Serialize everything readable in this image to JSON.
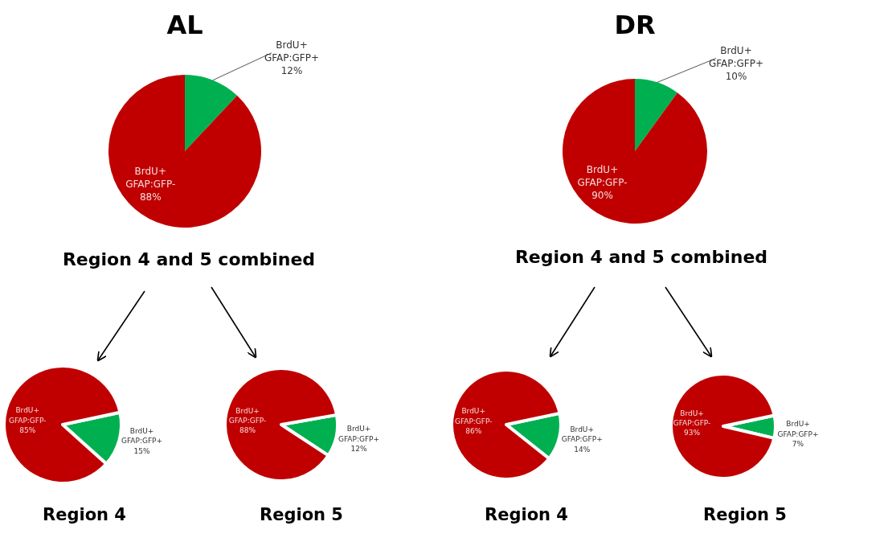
{
  "chart_data": [
    {
      "type": "pie",
      "title": "AL",
      "xlabel": "Region 4 and 5 combined",
      "categories": [
        "BrdU+ GFAP:GFP+",
        "BrdU+ GFAP:GFP-"
      ],
      "values": [
        12,
        88
      ],
      "value_labels": [
        "12%",
        "88%"
      ],
      "colors": [
        "#00b050",
        "#c00000"
      ]
    },
    {
      "type": "pie",
      "title": "DR",
      "xlabel": "Region 4 and 5 combined",
      "categories": [
        "BrdU+ GFAP:GFP+",
        "BrdU+ GFAP:GFP-"
      ],
      "values": [
        10,
        90
      ],
      "value_labels": [
        "10%",
        "90%"
      ],
      "colors": [
        "#00b050",
        "#c00000"
      ]
    },
    {
      "type": "pie",
      "xlabel": "Region 4",
      "categories": [
        "BrdU+ GFAP:GFP+",
        "BrdU+ GFAP:GFP-"
      ],
      "values": [
        15,
        85
      ],
      "value_labels": [
        "15%",
        "85%"
      ],
      "colors": [
        "#00b050",
        "#c00000"
      ]
    },
    {
      "type": "pie",
      "xlabel": "Region 5",
      "categories": [
        "BrdU+ GFAP:GFP+",
        "BrdU+ GFAP:GFP-"
      ],
      "values": [
        12,
        88
      ],
      "value_labels": [
        "12%",
        "88%"
      ],
      "colors": [
        "#00b050",
        "#c00000"
      ]
    },
    {
      "type": "pie",
      "xlabel": "Region 4",
      "categories": [
        "BrdU+ GFAP:GFP+",
        "BrdU+ GFAP:GFP-"
      ],
      "values": [
        14,
        86
      ],
      "value_labels": [
        "14%",
        "86%"
      ],
      "colors": [
        "#00b050",
        "#c00000"
      ]
    },
    {
      "type": "pie",
      "xlabel": "Region 5",
      "categories": [
        "BrdU+ GFAP:GFP+",
        "BrdU+ GFAP:GFP-"
      ],
      "values": [
        7,
        93
      ],
      "value_labels": [
        "7%",
        "93%"
      ],
      "colors": [
        "#00b050",
        "#c00000"
      ]
    }
  ]
}
